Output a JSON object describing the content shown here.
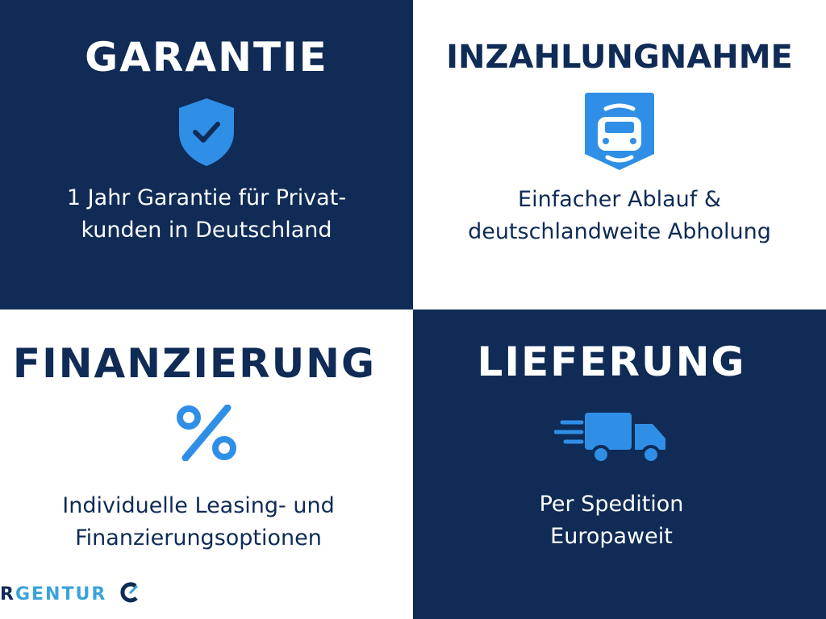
{
  "colors": {
    "navy": "#0f2b56",
    "accent": "#2f8fe6"
  },
  "tiles": [
    {
      "title": "GARANTIE",
      "icon": "shield-check-icon",
      "lines": [
        "1 Jahr Garantie für Privat-",
        "kunden in Deutschland"
      ]
    },
    {
      "title": "INZAHLUNGNAHME",
      "icon": "car-badge-icon",
      "lines": [
        "Einfacher Ablauf &",
        "deutschlandweite Abholung"
      ]
    },
    {
      "title": "FINANZIERUNG",
      "icon": "percent-icon",
      "lines": [
        "Individuelle Leasing- und",
        "Finanzierungsoptionen"
      ]
    },
    {
      "title": "LIEFERUNG",
      "icon": "delivery-truck-icon",
      "lines": [
        "Per Spedition",
        "Europaweit"
      ]
    }
  ],
  "logo": {
    "first": "R",
    "rest": "GENTUR"
  }
}
